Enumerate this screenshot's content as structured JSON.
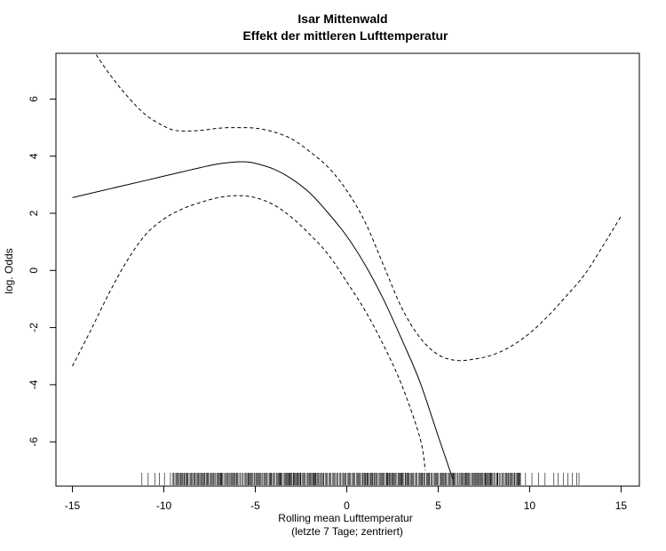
{
  "chart_data": {
    "type": "line",
    "title": "Isar Mittenwald",
    "subtitle": "Effekt der mittleren Lufttemperatur",
    "xlabel": "Rolling mean Lufttemperatur",
    "xlabel2": "(letzte 7 Tage; zentriert)",
    "ylabel": "log. Odds",
    "xlim": [
      -15.9,
      16.0
    ],
    "ylim": [
      -7.55,
      7.6
    ],
    "xticks": [
      -15,
      -10,
      -5,
      0,
      5,
      10,
      15
    ],
    "yticks": [
      -6,
      -4,
      -2,
      0,
      2,
      4,
      6
    ],
    "xtick_labels": [
      "-15",
      "-10",
      "-5",
      "0",
      "5",
      "10",
      "15"
    ],
    "ytick_labels": [
      "-6",
      "-4",
      "-2",
      "0",
      "2",
      "4",
      "6"
    ],
    "series": [
      {
        "style": "solid",
        "x": [
          -15,
          -13,
          -11,
          -9,
          -8,
          -7,
          -6,
          -5.5,
          -5,
          -4,
          -3,
          -2,
          -1,
          0,
          1,
          2,
          3,
          4,
          5,
          5.8
        ],
        "y": [
          2.55,
          2.85,
          3.15,
          3.45,
          3.6,
          3.73,
          3.8,
          3.8,
          3.75,
          3.55,
          3.2,
          2.7,
          2.0,
          1.2,
          0.2,
          -1.0,
          -2.4,
          -3.9,
          -5.8,
          -7.3
        ]
      },
      {
        "style": "dashed",
        "x": [
          -13.7,
          -13,
          -12,
          -11,
          -10,
          -9.5,
          -9,
          -8,
          -7,
          -6,
          -5,
          -4,
          -3,
          -2,
          -1,
          0,
          1,
          2,
          3,
          4,
          5,
          6,
          7,
          8,
          9,
          10,
          11,
          12,
          13,
          14,
          15
        ],
        "y": [
          7.55,
          6.9,
          6.1,
          5.45,
          5.05,
          4.92,
          4.88,
          4.9,
          4.98,
          5.0,
          4.98,
          4.85,
          4.6,
          4.15,
          3.6,
          2.8,
          1.7,
          0.2,
          -1.3,
          -2.35,
          -2.95,
          -3.15,
          -3.1,
          -2.95,
          -2.65,
          -2.2,
          -1.6,
          -0.9,
          -0.15,
          0.85,
          1.9
        ]
      },
      {
        "style": "dashed",
        "x": [
          -15,
          -14,
          -13,
          -12,
          -11,
          -10,
          -9,
          -8,
          -7,
          -6,
          -5,
          -4,
          -3,
          -2,
          -1,
          0,
          1,
          2,
          3,
          4,
          4.3
        ],
        "y": [
          -3.35,
          -2.1,
          -0.8,
          0.35,
          1.25,
          1.8,
          2.15,
          2.38,
          2.55,
          2.62,
          2.55,
          2.3,
          1.85,
          1.25,
          0.55,
          -0.4,
          -1.4,
          -2.6,
          -4.0,
          -5.85,
          -7.0
        ]
      }
    ],
    "rug": {
      "start": -11.2,
      "end": 12.7,
      "dense_from": -9.5,
      "dense_to": 9.5
    }
  }
}
